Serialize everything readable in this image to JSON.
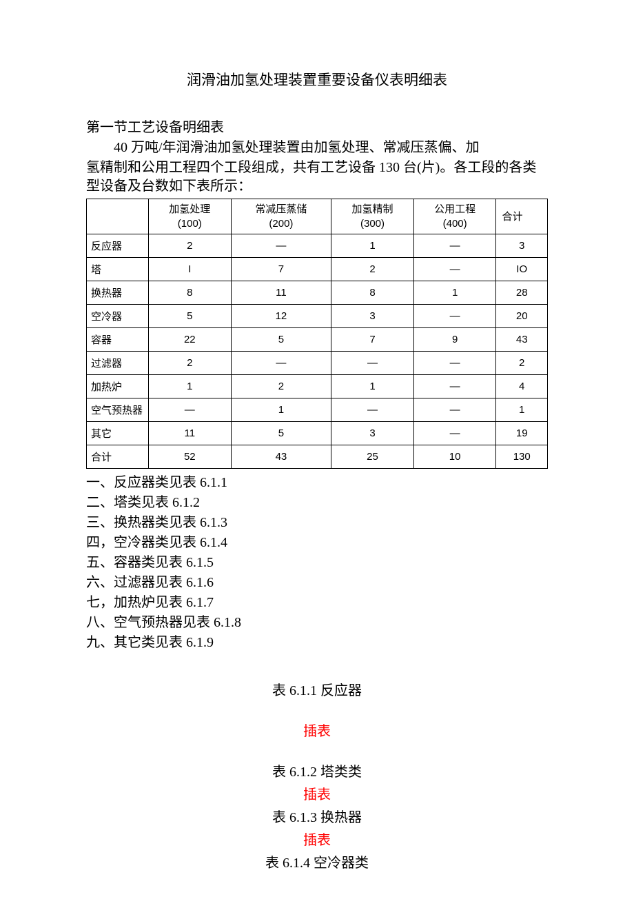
{
  "title": "润滑油加氢处理装置重要设备仪表明细表",
  "section1": {
    "heading": "第一节工艺设备明细表",
    "intro_line1": "40 万吨/年润滑油加氢处理装置由加氢处理、常减压蒸偏、加",
    "intro_line2": "氢精制和公用工程四个工段组成，共有工艺设备 130 台(片)。各工段的各类型设备及台数如下表所示："
  },
  "table": {
    "header": {
      "c0": "",
      "c1_line1": "加氢处理",
      "c1_line2": "(100)",
      "c2_line1": "常减压蒸储",
      "c2_line2": "(200)",
      "c3_line1": "加氢精制",
      "c3_line2": "(300)",
      "c4_line1": "公用工程",
      "c4_line2": "(400)",
      "c5": "合计"
    },
    "rows": [
      {
        "label": "反应器",
        "c1": "2",
        "c2": "—",
        "c3": "1",
        "c4": "—",
        "c5": "3"
      },
      {
        "label": "塔",
        "c1": "I",
        "c2": "7",
        "c3": "2",
        "c4": "—",
        "c5": "IO"
      },
      {
        "label": "换热器",
        "c1": "8",
        "c2": "11",
        "c3": "8",
        "c4": "1",
        "c5": "28"
      },
      {
        "label": "空冷器",
        "c1": "5",
        "c2": "12",
        "c3": "3",
        "c4": "—",
        "c5": "20"
      },
      {
        "label": "容器",
        "c1": "22",
        "c2": "5",
        "c3": "7",
        "c4": "9",
        "c5": "43"
      },
      {
        "label": "过滤器",
        "c1": "2",
        "c2": "—",
        "c3": "—",
        "c4": "—",
        "c5": "2"
      },
      {
        "label": "加热炉",
        "c1": "1",
        "c2": "2",
        "c3": "1",
        "c4": "—",
        "c5": "4"
      },
      {
        "label": "空气预热器",
        "c1": "—",
        "c2": "1",
        "c3": "—",
        "c4": "—",
        "c5": "1"
      },
      {
        "label": "其它",
        "c1": "11",
        "c2": "5",
        "c3": "3",
        "c4": "—",
        "c5": "19"
      },
      {
        "label": "合计",
        "c1": "52",
        "c2": "43",
        "c3": "25",
        "c4": "10",
        "c5": "130"
      }
    ]
  },
  "list": [
    "一、反应器类见表 6.1.1",
    "二、塔类见表 6.1.2",
    "三、换热器类见表 6.1.3",
    "四，空冷器类见表 6.1.4",
    "五、容器类见表 6.1.5",
    "六、过滤器见表 6.1.6",
    "七，加热炉见表 6.1.7",
    "八、空气预热器见表 6.1.8",
    "九、其它类见表 6.1.9"
  ],
  "captions": {
    "t611": "表 6.1.1 反应器",
    "ins1": "插表",
    "t612": "表 6.1.2 塔类类",
    "ins2": "插表",
    "t613": "表 6.1.3 换热器",
    "ins3": "插表",
    "t614": "表 6.1.4 空冷器类"
  },
  "colors": {
    "text": "#000000",
    "insert_red": "#ff0000",
    "border": "#000000",
    "background": "#ffffff"
  }
}
